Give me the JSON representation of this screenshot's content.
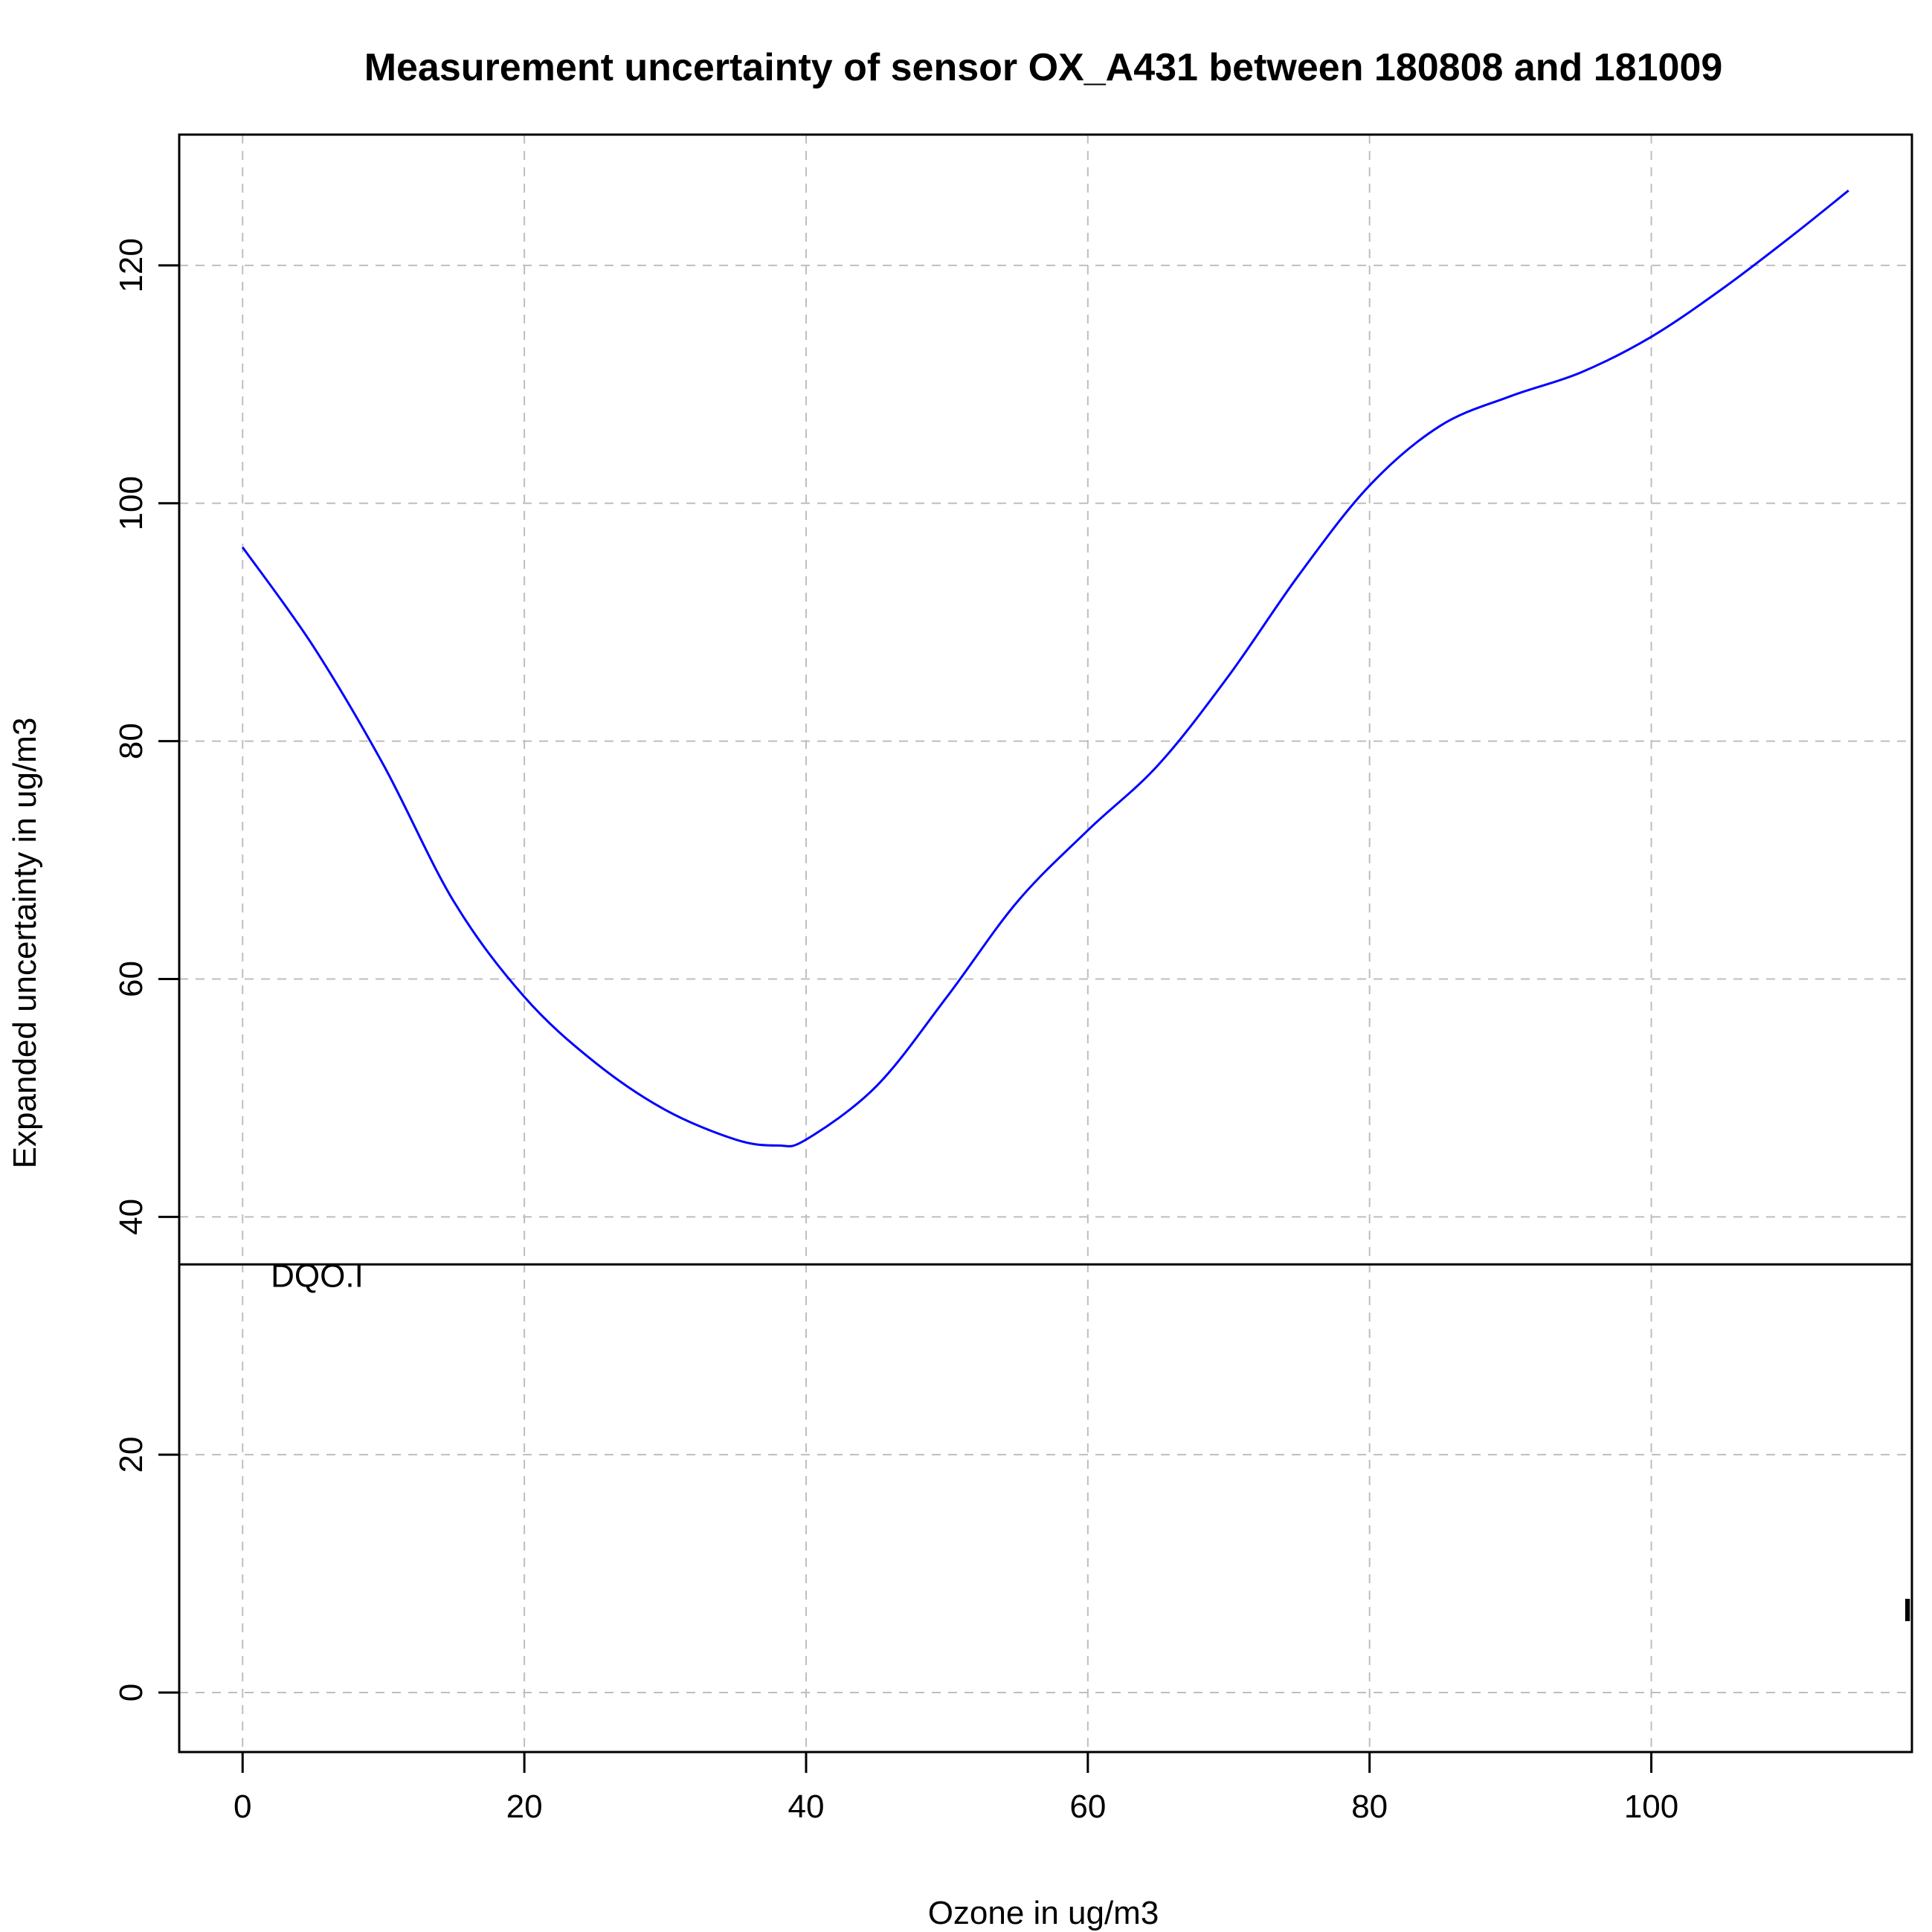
{
  "chart_data": {
    "type": "line",
    "title": "Measurement uncertainty of sensor OX_A431 between 180808 and 181009",
    "xlabel": "Ozone in ug/m3",
    "ylabel": "Expanded uncertainty in ug/m3",
    "xlim": [
      -4.5,
      118.5
    ],
    "ylim": [
      -5,
      131
    ],
    "x_ticks": [
      0,
      20,
      40,
      60,
      80,
      100
    ],
    "y_ticks": [
      0,
      20,
      40,
      60,
      80,
      100,
      120
    ],
    "x_tick_labels": [
      "0",
      "20",
      "40",
      "60",
      "80",
      "100"
    ],
    "y_tick_labels": [
      "0",
      "20",
      "40",
      "60",
      "80",
      "100",
      "120"
    ],
    "grid": true,
    "series": [
      {
        "color": "#0000ff",
        "x": [
          0,
          5,
          10,
          15,
          20,
          25,
          30,
          35,
          38,
          40,
          45,
          50,
          55,
          60,
          65,
          70,
          75,
          80,
          85,
          90,
          95,
          100,
          105,
          110,
          114
        ],
        "values": [
          96.3,
          88,
          78,
          66.5,
          58.5,
          53,
          49,
          46.5,
          46,
          46.5,
          51,
          58.5,
          66.5,
          72.5,
          78,
          85.5,
          94,
          101.5,
          106.5,
          109,
          111,
          114,
          118,
          122.5,
          126.3
        ]
      }
    ],
    "hlines": [
      {
        "y": 36,
        "color": "#000000",
        "label": "DQO.I",
        "label_x": 2
      }
    ],
    "edge_mark": {
      "text": "I",
      "y": 6
    }
  }
}
